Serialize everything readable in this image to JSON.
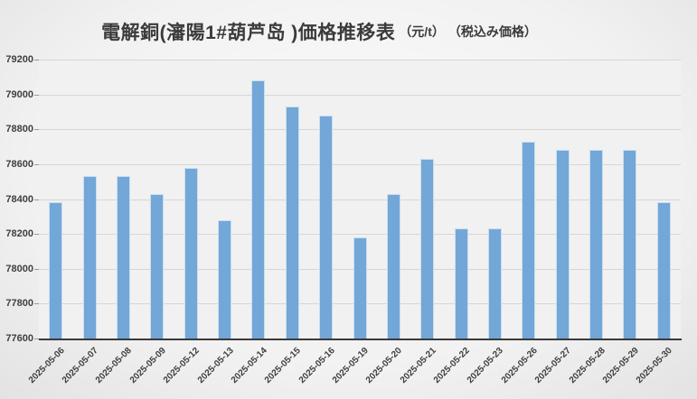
{
  "title": {
    "main": "電解銅(瀋陽1#葫芦岛 )価格推移表",
    "unit": "（元/t）",
    "tax_note": "（税込み価格）"
  },
  "chart_data": {
    "type": "bar",
    "title": "電解銅(瀋陽1#葫芦岛 )価格推移表（元/t）（税込み価格）",
    "xlabel": "",
    "ylabel": "",
    "categories": [
      "2025-05-06",
      "2025-05-07",
      "2025-05-08",
      "2025-05-09",
      "2025-05-12",
      "2025-05-13",
      "2025-05-14",
      "2025-05-15",
      "2025-05-16",
      "2025-05-19",
      "2025-05-20",
      "2025-05-21",
      "2025-05-22",
      "2025-05-23",
      "2025-05-26",
      "2025-05-27",
      "2025-05-28",
      "2025-05-29",
      "2025-05-30"
    ],
    "values": [
      78380,
      78530,
      78530,
      78430,
      78580,
      78280,
      79080,
      78930,
      78880,
      78180,
      78430,
      78630,
      78230,
      78230,
      78730,
      78680,
      78680,
      78680,
      78380
    ],
    "ylim": [
      77600,
      79200
    ],
    "ytick_step": 200,
    "yticks": [
      "77600",
      "77800",
      "78000",
      "78200",
      "78400",
      "78600",
      "78800",
      "79000",
      "79200"
    ],
    "grid": "horizontal only",
    "legend_position": "none",
    "bar_color": "#72a7d8",
    "bar_border_color": "#cadeef",
    "plot_background": "#f1f1f1",
    "axis_line_color": "#3a3a3a",
    "label_color": "#404040"
  }
}
